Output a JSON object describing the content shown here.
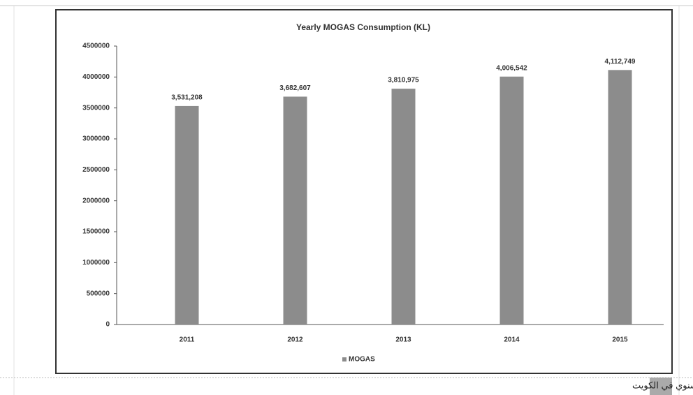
{
  "chart_data": {
    "type": "bar",
    "title": "Yearly MOGAS Consumption (KL)",
    "categories": [
      "2011",
      "2012",
      "2013",
      "2014",
      "2015"
    ],
    "series": [
      {
        "name": "MOGAS",
        "color": "#8c8c8c",
        "values": [
          3531208,
          3682607,
          3810975,
          4006542,
          4112749
        ],
        "value_labels": [
          "3,531,208",
          "3,682,607",
          "3,810,975",
          "4,006,542",
          "4,112,749"
        ]
      }
    ],
    "ylim": [
      0,
      4500000
    ],
    "yticks": [
      0,
      500000,
      1000000,
      1500000,
      2000000,
      2500000,
      3000000,
      3500000,
      4000000,
      4500000
    ],
    "legend": "bottom"
  },
  "caption": "تطور نمو الاستهلاك السنوي في الكويت"
}
